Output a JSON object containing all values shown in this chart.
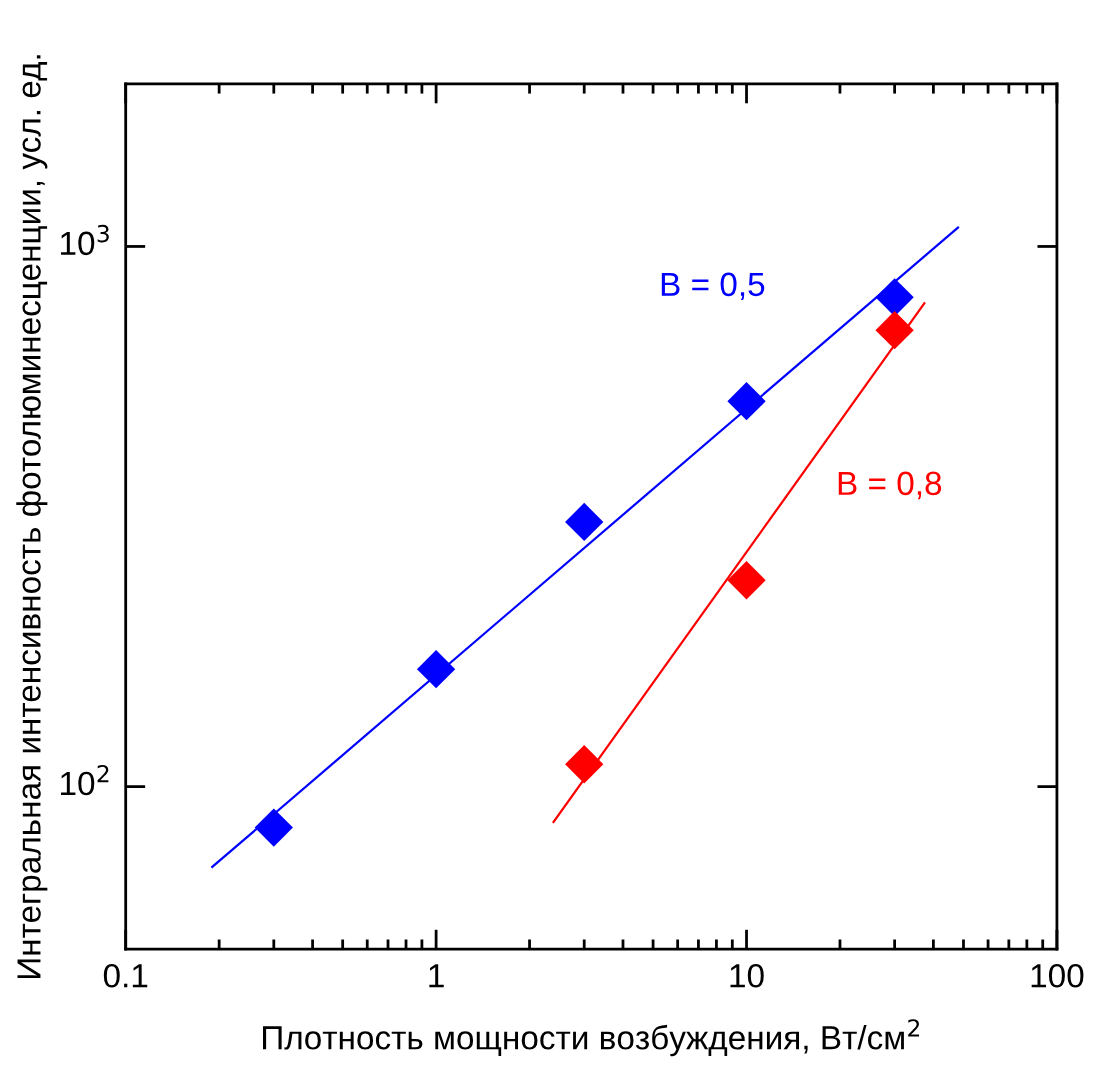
{
  "chart_data": {
    "type": "scatter",
    "xlabel": "Плотность мощности возбуждения, Вт/см$^{2}$",
    "ylabel": "Интегральная интенсивность фотолюминесценции, усл. ед.",
    "log": "xy",
    "marker": "diamond",
    "grid": false,
    "legend": false,
    "xlim": [
      0.1,
      100
    ],
    "xticks": [
      0.1,
      1,
      10,
      100
    ],
    "ylim": [
      50,
      2000
    ],
    "yticks": [
      {
        "value": 100,
        "label": "10$^{2}$"
      },
      {
        "value": 1000,
        "label": "10$^{3}$"
      }
    ],
    "series": [
      {
        "name": "B = 0,5",
        "color": "#0000ff",
        "x": [
          0.3,
          1,
          3,
          10,
          30
        ],
        "values": [
          84,
          165,
          309,
          517,
          805
        ]
      },
      {
        "name": "B = 0,8",
        "color": "#ff0000",
        "x": [
          3,
          10,
          30
        ],
        "values": [
          110,
          241,
          700
        ]
      },
      {
        "type": "line",
        "color": "#0000ff",
        "marker": "none",
        "x": [
          0.19,
          48
        ],
        "values": [
          71,
          1084
        ]
      },
      {
        "type": "line",
        "color": "#ff0000",
        "marker": "none",
        "x": [
          2.39,
          37.4
        ],
        "values": [
          86,
          785
        ]
      }
    ]
  }
}
